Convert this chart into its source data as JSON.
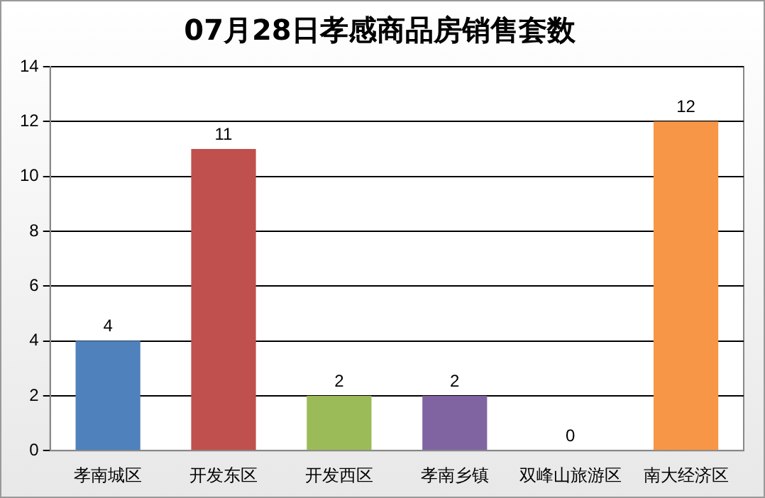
{
  "chart_data": {
    "type": "bar",
    "title": "07月28日孝感商品房销售套数",
    "categories": [
      "孝南城区",
      "开发东区",
      "开发西区",
      "孝南乡镇",
      "双峰山旅游区",
      "南大经济区"
    ],
    "values": [
      4,
      11,
      2,
      2,
      0,
      12
    ],
    "colors": [
      "#4f81bd",
      "#c0504d",
      "#9bbb59",
      "#8064a2",
      "#4bacc6",
      "#f79646"
    ],
    "ylim": [
      0,
      14
    ],
    "yticks": [
      0,
      2,
      4,
      6,
      8,
      10,
      12,
      14
    ],
    "grid": "y",
    "data_labels": true,
    "legend": false
  }
}
